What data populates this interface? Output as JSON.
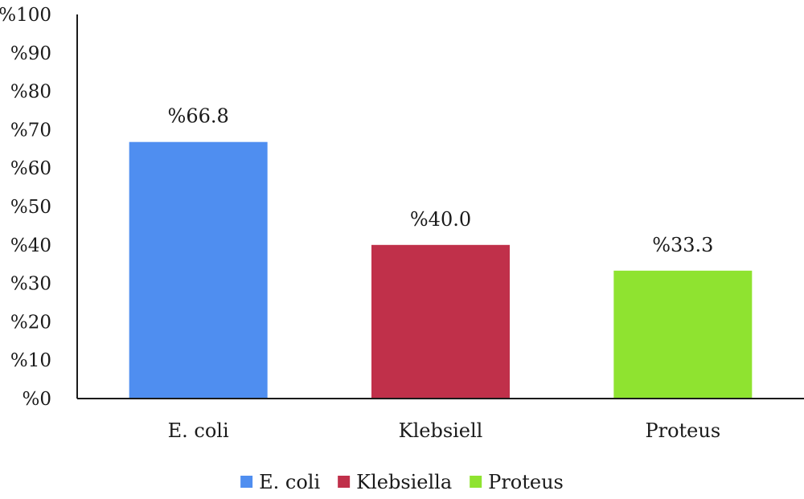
{
  "chart_data": {
    "type": "bar",
    "title": "",
    "xlabel": "",
    "ylabel": "",
    "ylim": [
      0,
      100
    ],
    "y_ticks": [
      0,
      10,
      20,
      30,
      40,
      50,
      60,
      70,
      80,
      90,
      100
    ],
    "y_tick_labels": [
      "%0",
      "%10",
      "%20",
      "%30",
      "%40",
      "%50",
      "%60",
      "%70",
      "%80",
      "%90",
      "%100"
    ],
    "categories": [
      "E. coli",
      "Klebsiell",
      "Proteus"
    ],
    "values": [
      66.8,
      40.0,
      33.3
    ],
    "data_labels": [
      "%66.8",
      "%40.0",
      "%33.3"
    ],
    "colors": [
      "#4f8ef0",
      "#c0304a",
      "#8fe330"
    ],
    "grid": false,
    "legend": {
      "position": "bottom",
      "entries": [
        {
          "label": "E. coli",
          "color": "#4f8ef0"
        },
        {
          "label": "Klebsiella",
          "color": "#c0304a"
        },
        {
          "label": "Proteus",
          "color": "#8fe330"
        }
      ]
    }
  }
}
